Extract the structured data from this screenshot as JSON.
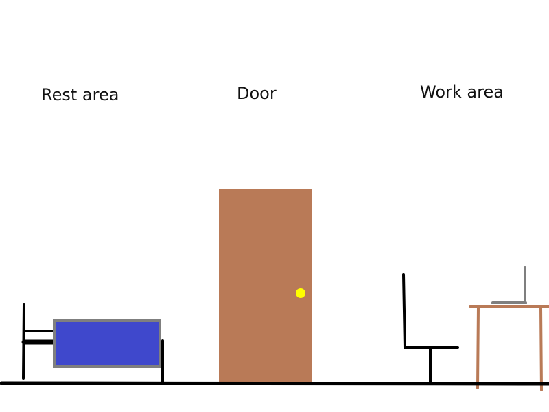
{
  "labels": {
    "rest_area": "Rest area",
    "door": "Door",
    "work_area": "Work area"
  },
  "colors": {
    "floor": "#000000",
    "bed_frame": "#000000",
    "mattress_fill": "#3f48cc",
    "mattress_border": "#7f7f7f",
    "door": "#b97a57",
    "doorknob": "#ffff00",
    "chair": "#000000",
    "desk": "#b97a57",
    "laptop": "#7f7f7f"
  }
}
